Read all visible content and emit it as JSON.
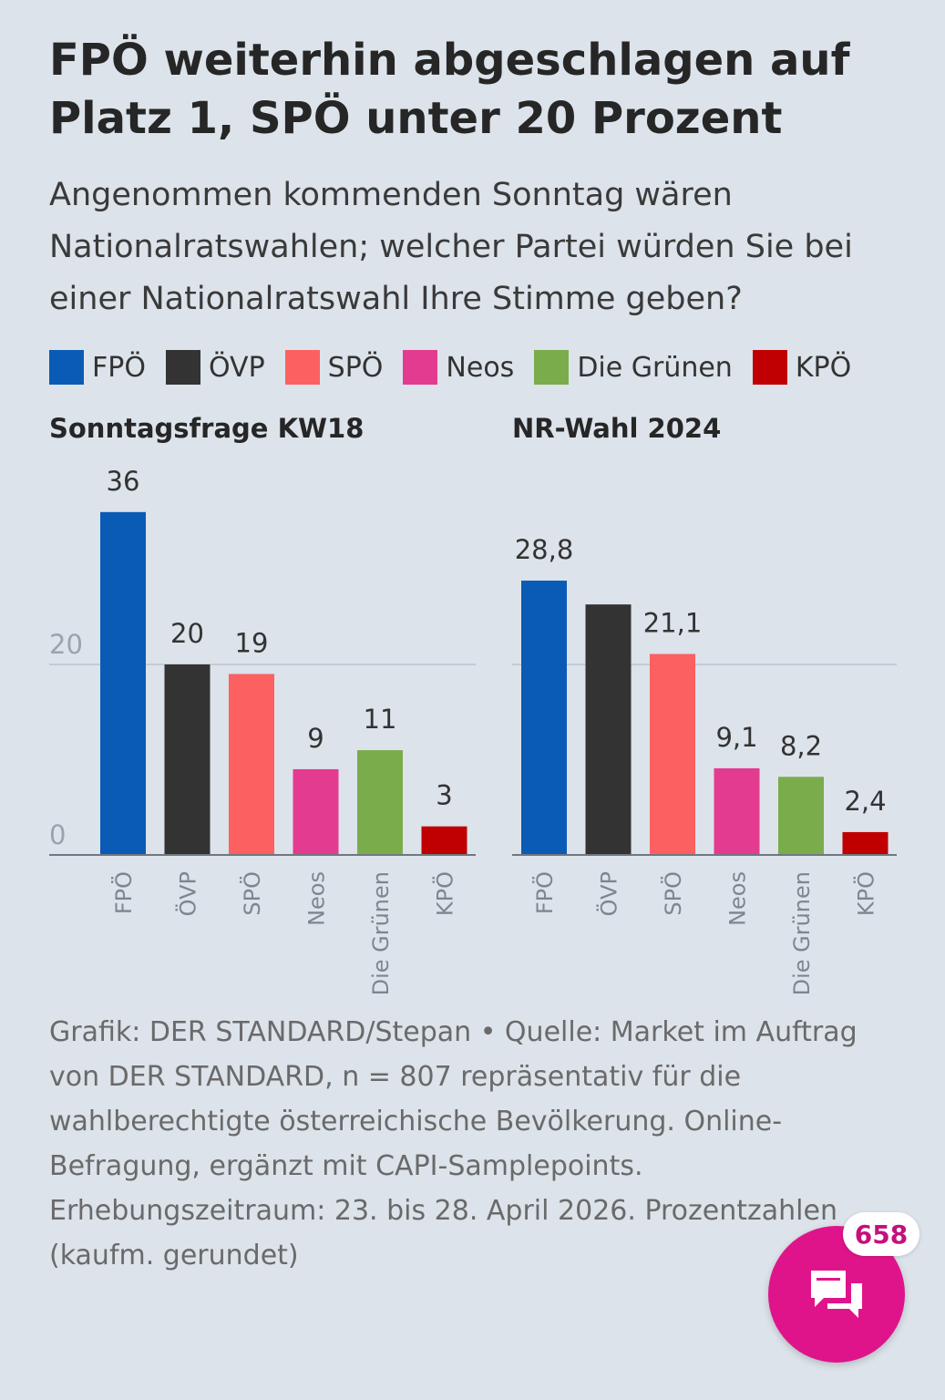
{
  "title": "FPÖ weiterhin abgeschlagen auf Platz 1, SPÖ unter 20 Prozent",
  "subtitle": "Angenommen kommenden Sonntag wären Nationalratswahlen; welcher Partei würden Sie bei einer Nationalratswahl Ihre Stimme geben?",
  "legend": [
    {
      "label": "FPÖ",
      "color": "#0a5bb5"
    },
    {
      "label": "ÖVP",
      "color": "#333333"
    },
    {
      "label": "SPÖ",
      "color": "#fd6060"
    },
    {
      "label": "Neos",
      "color": "#e33b8f"
    },
    {
      "label": "Die Grünen",
      "color": "#7aac4c"
    },
    {
      "label": "KPÖ",
      "color": "#c00000"
    }
  ],
  "chart_data": [
    {
      "type": "bar",
      "title": "Sonntagsfrage KW18",
      "categories": [
        "FPÖ",
        "ÖVP",
        "SPÖ",
        "Neos",
        "Die Grünen",
        "KPÖ"
      ],
      "values": [
        36,
        20,
        19,
        9,
        11,
        3
      ],
      "labels": [
        "36",
        "20",
        "19",
        "9",
        "11",
        "3"
      ],
      "yticks": [
        0,
        20
      ],
      "ytick_labels": [
        "0",
        "20"
      ],
      "ylim": [
        0,
        40
      ],
      "grid": true
    },
    {
      "type": "bar",
      "title": "NR-Wahl 2024",
      "categories": [
        "FPÖ",
        "ÖVP",
        "SPÖ",
        "Neos",
        "Die Grünen",
        "KPÖ"
      ],
      "values": [
        28.8,
        26.3,
        21.1,
        9.1,
        8.2,
        2.4
      ],
      "labels": [
        "28,8",
        "",
        "21,1",
        "9,1",
        "8,2",
        "2,4"
      ],
      "yticks": [
        20
      ],
      "ytick_labels": [
        ""
      ],
      "ylim": [
        0,
        40
      ],
      "grid": true
    }
  ],
  "note": "Grafik: DER STANDARD/Stepan • Quelle: Market im Auftrag von DER STANDARD, n = 807 repräsentativ für die wahlberechtigte österreichische Bevölkerung. Online-Befragung, ergänzt mit CAPI-Samplepoints. Erhebungszeitraum: 23. bis 28. April 2026. Prozentzahlen (kaufm. gerundet)",
  "comments": {
    "count": "658"
  }
}
